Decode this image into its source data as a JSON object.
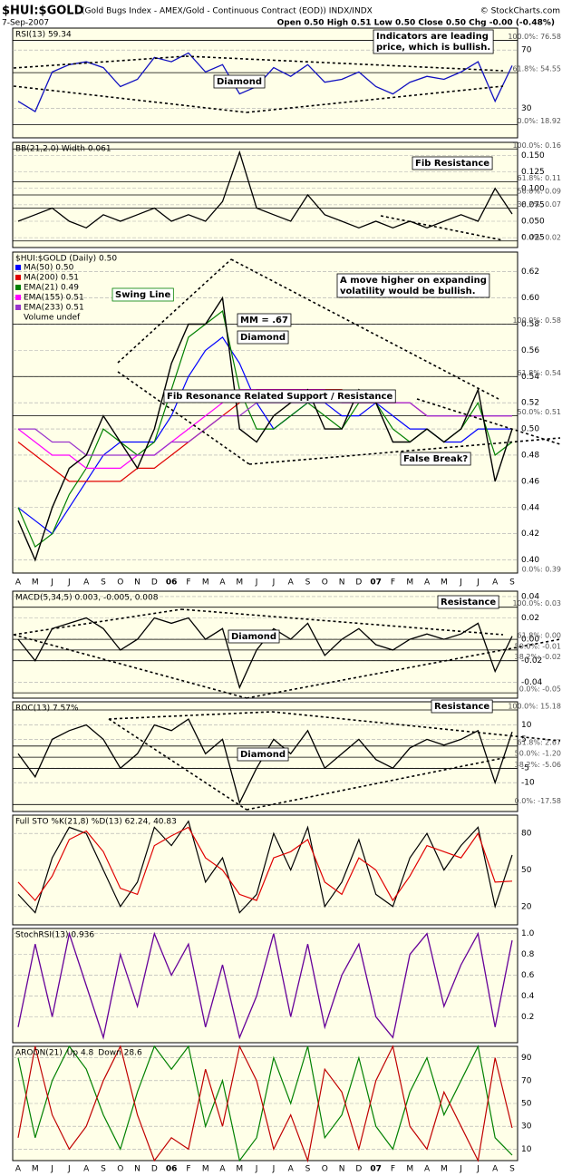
{
  "header": {
    "symbol": "$HUI:$GOLD",
    "description": "(Gold Bugs Index - AMEX/Gold - Continuous Contract (EOD)) INDX/INDX",
    "copyright": "© StockCharts.com",
    "date": "7-Sep-2007",
    "quote": "Open 0.50 High 0.51 Low 0.50 Close 0.50 Chg -0.00 (-0.48%)"
  },
  "x_axis": {
    "categories": [
      "A",
      "M",
      "J",
      "J",
      "A",
      "S",
      "O",
      "N",
      "D",
      "06",
      "F",
      "M",
      "A",
      "M",
      "J",
      "J",
      "A",
      "S",
      "O",
      "N",
      "D",
      "07",
      "F",
      "M",
      "A",
      "M",
      "J",
      "J",
      "A",
      "S"
    ]
  },
  "chart_data": [
    {
      "type": "line",
      "title": "RSI(13) 59.34",
      "ylim": [
        10,
        85
      ],
      "yticks": [
        70,
        30
      ],
      "fib_levels": [
        {
          "value": 76.58,
          "label": "100.0%: 76.58"
        },
        {
          "value": 54.55,
          "label": "61.8%: 54.55"
        },
        {
          "value": 18.92,
          "label": "0.0%: 18.92"
        }
      ],
      "color": "#1010c0",
      "values": [
        35,
        28,
        55,
        60,
        62,
        58,
        45,
        50,
        65,
        62,
        68,
        55,
        60,
        40,
        45,
        58,
        52,
        60,
        48,
        50,
        55,
        45,
        40,
        48,
        52,
        50,
        55,
        62,
        35,
        59.34
      ],
      "annotations": [
        {
          "lines": [
            "Indicators are leading",
            "price, which is bullish."
          ]
        },
        {
          "lines": [
            "Diamond"
          ]
        }
      ]
    },
    {
      "type": "line",
      "title": "BB(21,2.0) Width 0.061",
      "ylim": [
        0.01,
        0.17
      ],
      "yticks": [
        {
          "value": 0.15,
          "label": "0.150"
        },
        0.125,
        {
          "value": 0.1,
          "label": "0.100"
        },
        0.075,
        {
          "value": 0.05,
          "label": "0.050"
        },
        0.025
      ],
      "fib_levels": [
        {
          "value": 0.16,
          "label": "100.0%: 0.16"
        },
        {
          "value": 0.11,
          "label": "61.8%: 0.11"
        },
        {
          "value": 0.09,
          "label": "50.0%: 0.09"
        },
        {
          "value": 0.07,
          "label": "38.2%: 0.07"
        },
        {
          "value": 0.02,
          "label": "0.0%: 0.02"
        }
      ],
      "color": "#000000",
      "values": [
        0.05,
        0.06,
        0.07,
        0.05,
        0.04,
        0.06,
        0.05,
        0.06,
        0.07,
        0.05,
        0.06,
        0.05,
        0.08,
        0.155,
        0.07,
        0.06,
        0.05,
        0.09,
        0.06,
        0.05,
        0.04,
        0.05,
        0.04,
        0.05,
        0.04,
        0.05,
        0.06,
        0.05,
        0.1,
        0.061
      ],
      "annotations": [
        {
          "lines": [
            "Fib Resistance"
          ]
        }
      ]
    },
    {
      "type": "line",
      "title": "$HUI:$GOLD (Daily) 0.50",
      "ylim": [
        0.39,
        0.635
      ],
      "legend": "top-left",
      "volume_label": "Volume undef",
      "yticks": [
        0.62,
        {
          "value": 0.6,
          "label": "0.60"
        },
        0.58,
        0.56,
        0.54,
        0.52,
        {
          "value": 0.5,
          "label": "0.50"
        },
        0.48,
        0.46,
        0.44,
        0.42,
        {
          "value": 0.4,
          "label": "0.40"
        }
      ],
      "fib_levels": [
        {
          "value": 0.58,
          "label": "100.0%: 0.58"
        },
        {
          "value": 0.54,
          "label": "61.8%: 0.54"
        },
        {
          "value": 0.51,
          "label": "50.0%: 0.51"
        },
        {
          "value": 0.39,
          "label": "0.0%: 0.39"
        }
      ],
      "color": "#000000",
      "values": [
        0.43,
        0.4,
        0.44,
        0.47,
        0.48,
        0.51,
        0.49,
        0.47,
        0.5,
        0.55,
        0.58,
        0.58,
        0.6,
        0.5,
        0.49,
        0.51,
        0.52,
        0.53,
        0.5,
        0.5,
        0.53,
        0.52,
        0.49,
        0.49,
        0.5,
        0.49,
        0.5,
        0.53,
        0.46,
        0.5
      ],
      "series": [
        {
          "name": "MA(50) 0.50",
          "color": "#0000ff",
          "values": [
            0.44,
            0.43,
            0.42,
            0.44,
            0.46,
            0.48,
            0.49,
            0.49,
            0.49,
            0.51,
            0.54,
            0.56,
            0.57,
            0.55,
            0.52,
            0.5,
            0.51,
            0.52,
            0.52,
            0.51,
            0.51,
            0.52,
            0.51,
            0.5,
            0.5,
            0.49,
            0.49,
            0.5,
            0.5,
            0.5
          ]
        },
        {
          "name": "MA(200) 0.51",
          "color": "#e00000",
          "values": [
            0.49,
            0.48,
            0.47,
            0.46,
            0.46,
            0.46,
            0.46,
            0.47,
            0.47,
            0.48,
            0.49,
            0.5,
            0.51,
            0.52,
            0.53,
            0.53,
            0.53,
            0.53,
            0.53,
            0.53,
            0.52,
            0.52,
            0.52,
            0.52,
            0.51,
            0.51,
            0.51,
            0.51,
            0.51,
            0.51
          ]
        },
        {
          "name": "EMA(21) 0.49",
          "color": "#008000",
          "values": [
            0.44,
            0.41,
            0.42,
            0.45,
            0.47,
            0.5,
            0.49,
            0.48,
            0.49,
            0.53,
            0.57,
            0.58,
            0.59,
            0.53,
            0.5,
            0.5,
            0.51,
            0.52,
            0.51,
            0.5,
            0.52,
            0.52,
            0.5,
            0.49,
            0.5,
            0.49,
            0.5,
            0.52,
            0.48,
            0.49
          ]
        },
        {
          "name": "EMA(155) 0.51",
          "color": "#ff00ff",
          "values": [
            0.5,
            0.49,
            0.48,
            0.48,
            0.47,
            0.47,
            0.47,
            0.48,
            0.48,
            0.49,
            0.5,
            0.51,
            0.52,
            0.53,
            0.53,
            0.53,
            0.53,
            0.53,
            0.53,
            0.52,
            0.52,
            0.52,
            0.52,
            0.52,
            0.51,
            0.51,
            0.51,
            0.51,
            0.51,
            0.51
          ]
        },
        {
          "name": "EMA(233) 0.51",
          "color": "#9933cc",
          "values": [
            0.5,
            0.5,
            0.49,
            0.49,
            0.48,
            0.48,
            0.48,
            0.48,
            0.48,
            0.49,
            0.49,
            0.5,
            0.51,
            0.51,
            0.52,
            0.52,
            0.52,
            0.52,
            0.52,
            0.52,
            0.52,
            0.52,
            0.52,
            0.52,
            0.51,
            0.51,
            0.51,
            0.51,
            0.51,
            0.51
          ]
        }
      ],
      "annotations": [
        {
          "lines": [
            "Swing Line"
          ],
          "color": "#008000"
        },
        {
          "lines": [
            "MM = .67"
          ]
        },
        {
          "lines": [
            "Diamond"
          ]
        },
        {
          "lines": [
            "Fib Resonance Related Support / Resistance"
          ]
        },
        {
          "lines": [
            "A move higher on expanding",
            "volatility would be bullish."
          ]
        },
        {
          "lines": [
            "False Break?"
          ]
        }
      ]
    },
    {
      "type": "line",
      "title": "MACD(5,34,5) 0.003, -0.005, 0.008",
      "ylim": [
        -0.055,
        0.045
      ],
      "yticks": [
        0.04,
        0.02,
        {
          "value": 0,
          "label": "0.00"
        },
        -0.02,
        -0.04
      ],
      "fib_levels": [
        {
          "value": 0.03,
          "label": "100.0%: 0.03"
        },
        {
          "value": 0,
          "label": "61.8%: 0.00"
        },
        {
          "value": -0.01,
          "label": "50.0%: -0.01"
        },
        {
          "value": -0.02,
          "label": "38.2%: -0.02"
        },
        {
          "value": -0.05,
          "label": "0.0%: -0.05"
        }
      ],
      "color": "#000000",
      "values": [
        0,
        -0.02,
        0.01,
        0.015,
        0.02,
        0.01,
        -0.01,
        0,
        0.02,
        0.015,
        0.02,
        0,
        0.01,
        -0.045,
        -0.01,
        0.01,
        0,
        0.015,
        -0.015,
        0,
        0.01,
        -0.005,
        -0.01,
        0,
        0.005,
        0,
        0.005,
        0.015,
        -0.03,
        0.003
      ],
      "annotations": [
        {
          "lines": [
            "Resistance"
          ]
        },
        {
          "lines": [
            "Diamond"
          ]
        }
      ]
    },
    {
      "type": "line",
      "title": "ROC(13) 7.57%",
      "ylim": [
        -20,
        18
      ],
      "yticks": [
        10,
        5,
        -5,
        -10
      ],
      "fib_levels": [
        {
          "value": 15.18,
          "label": "100.0%: 15.18"
        },
        {
          "value": 2.67,
          "label": "61.8%: 2.67"
        },
        {
          "value": -1.2,
          "label": "50.0%: -1.20"
        },
        {
          "value": -5.06,
          "label": "38.2%: -5.06"
        },
        {
          "value": -17.58,
          "label": "0.0%: -17.58"
        }
      ],
      "color": "#000000",
      "values": [
        0,
        -8,
        5,
        8,
        10,
        5,
        -5,
        0,
        10,
        8,
        12,
        0,
        5,
        -17,
        -5,
        5,
        0,
        8,
        -5,
        0,
        5,
        -2,
        -5,
        2,
        5,
        3,
        5,
        8,
        -10,
        7.57
      ],
      "annotations": [
        {
          "lines": [
            "Resistance"
          ]
        },
        {
          "lines": [
            "Diamond"
          ]
        }
      ]
    },
    {
      "type": "line",
      "title": "Full STO %K(21,8) %D(13) 62.24, 40.83",
      "ylim": [
        5,
        95
      ],
      "yticks": [
        80,
        50,
        20
      ],
      "series": [
        {
          "color": "#000000",
          "values": [
            30,
            15,
            60,
            85,
            80,
            50,
            20,
            40,
            85,
            70,
            90,
            40,
            60,
            15,
            30,
            80,
            50,
            85,
            20,
            40,
            75,
            30,
            20,
            60,
            80,
            50,
            70,
            85,
            20,
            62.24
          ]
        },
        {
          "color": "#e00000",
          "values": [
            40,
            25,
            45,
            75,
            82,
            65,
            35,
            30,
            70,
            78,
            85,
            60,
            50,
            30,
            25,
            60,
            65,
            75,
            40,
            30,
            60,
            50,
            25,
            45,
            70,
            65,
            60,
            80,
            40,
            40.83
          ]
        }
      ]
    },
    {
      "type": "line",
      "title": "StochRSI(13) 0.936",
      "ylim": [
        -0.05,
        1.05
      ],
      "yticks": [
        {
          "value": 1,
          "label": "1.0"
        },
        0.8,
        0.6,
        0.4,
        0.2
      ],
      "color": "#660099",
      "values": [
        0.1,
        0.9,
        0.2,
        1,
        0.5,
        0,
        0.8,
        0.3,
        1,
        0.6,
        0.9,
        0.1,
        0.7,
        0,
        0.4,
        1,
        0.2,
        0.9,
        0.1,
        0.6,
        0.9,
        0.2,
        0,
        0.8,
        1,
        0.3,
        0.7,
        1,
        0.1,
        0.936
      ]
    },
    {
      "type": "line",
      "title": "AROON(21)",
      "ylim": [
        0,
        100
      ],
      "yticks": [
        90,
        70,
        50,
        30,
        10
      ],
      "legend": "inline",
      "series": [
        {
          "name": "Up 4.8",
          "color": "#008000",
          "values": [
            90,
            20,
            70,
            100,
            80,
            40,
            10,
            60,
            100,
            80,
            100,
            30,
            70,
            0,
            20,
            90,
            50,
            100,
            20,
            40,
            90,
            30,
            10,
            60,
            90,
            40,
            70,
            100,
            20,
            4.8
          ]
        },
        {
          "name": "Down 28.6",
          "color": "#c00000",
          "values": [
            20,
            100,
            40,
            10,
            30,
            70,
            100,
            40,
            0,
            20,
            10,
            80,
            30,
            100,
            70,
            10,
            40,
            0,
            80,
            60,
            10,
            70,
            100,
            30,
            10,
            60,
            30,
            0,
            90,
            28.6
          ]
        }
      ]
    }
  ]
}
